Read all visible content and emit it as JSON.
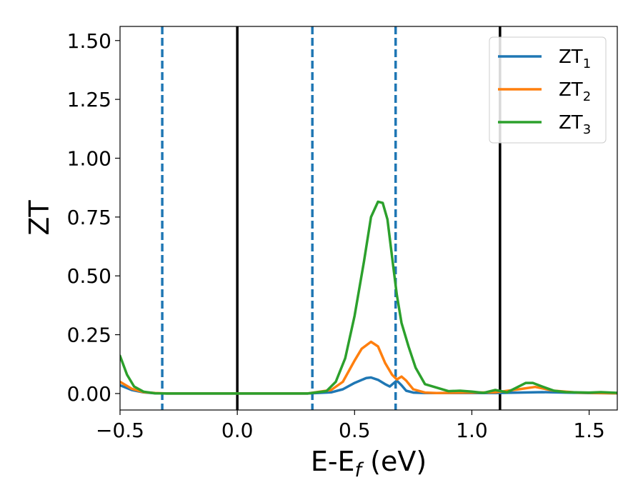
{
  "chart_data": {
    "type": "line",
    "xlabel": {
      "main": "E-E",
      "sub": "f",
      "suffix": " (eV)"
    },
    "ylabel": "ZT",
    "xlim": [
      -0.5,
      1.62
    ],
    "ylim": [
      -0.07,
      1.56
    ],
    "xticks": [
      -0.5,
      0.0,
      0.5,
      1.0,
      1.5
    ],
    "xtick_labels": [
      "−0.5",
      "0.0",
      "0.5",
      "1.0",
      "1.5"
    ],
    "yticks": [
      0.0,
      0.25,
      0.5,
      0.75,
      1.0,
      1.25,
      1.5
    ],
    "ytick_labels": [
      "0.00",
      "0.25",
      "0.50",
      "0.75",
      "1.00",
      "1.25",
      "1.50"
    ],
    "grid": false,
    "legend_position": "top-right",
    "vlines": [
      {
        "x": -0.32,
        "style": "dashed",
        "color": "#1f77b4"
      },
      {
        "x": 0.0,
        "style": "solid",
        "color": "#000000"
      },
      {
        "x": 0.32,
        "style": "dashed",
        "color": "#1f77b4"
      },
      {
        "x": 0.675,
        "style": "dashed",
        "color": "#1f77b4"
      },
      {
        "x": 1.12,
        "style": "solid",
        "color": "#000000"
      }
    ],
    "series": [
      {
        "name": "ZT",
        "sub": "1",
        "color": "#1f77b4",
        "x": [
          -0.5,
          -0.45,
          -0.4,
          -0.35,
          -0.3,
          0.3,
          0.4,
          0.45,
          0.5,
          0.55,
          0.57,
          0.6,
          0.63,
          0.65,
          0.68,
          0.7,
          0.72,
          0.75,
          0.8,
          0.9,
          1.0,
          1.1,
          1.2,
          1.3,
          1.4,
          1.5,
          1.62
        ],
        "y": [
          0.035,
          0.015,
          0.005,
          0.001,
          0.0,
          0.0,
          0.005,
          0.018,
          0.045,
          0.066,
          0.068,
          0.058,
          0.04,
          0.03,
          0.055,
          0.035,
          0.012,
          0.004,
          0.002,
          0.002,
          0.002,
          0.002,
          0.004,
          0.006,
          0.004,
          0.002,
          0.001
        ]
      },
      {
        "name": "ZT",
        "sub": "2",
        "color": "#ff7f0e",
        "x": [
          -0.5,
          -0.45,
          -0.4,
          -0.35,
          -0.3,
          0.3,
          0.4,
          0.45,
          0.5,
          0.53,
          0.57,
          0.6,
          0.63,
          0.66,
          0.68,
          0.7,
          0.72,
          0.75,
          0.8,
          0.85,
          0.9,
          1.0,
          1.1,
          1.2,
          1.27,
          1.35,
          1.45,
          1.55,
          1.62
        ],
        "y": [
          0.05,
          0.02,
          0.006,
          0.002,
          0.0,
          0.0,
          0.015,
          0.05,
          0.14,
          0.19,
          0.22,
          0.2,
          0.13,
          0.08,
          0.06,
          0.072,
          0.055,
          0.018,
          0.004,
          0.002,
          0.003,
          0.004,
          0.005,
          0.018,
          0.028,
          0.012,
          0.004,
          0.002,
          0.001
        ]
      },
      {
        "name": "ZT",
        "sub": "3",
        "color": "#2ca02c",
        "x": [
          -0.5,
          -0.47,
          -0.44,
          -0.4,
          -0.35,
          -0.3,
          0.3,
          0.38,
          0.42,
          0.46,
          0.5,
          0.54,
          0.57,
          0.6,
          0.62,
          0.64,
          0.66,
          0.68,
          0.7,
          0.73,
          0.76,
          0.8,
          0.85,
          0.9,
          0.95,
          1.0,
          1.05,
          1.1,
          1.15,
          1.2,
          1.23,
          1.26,
          1.3,
          1.35,
          1.4,
          1.5,
          1.55,
          1.62
        ],
        "y": [
          0.16,
          0.08,
          0.03,
          0.008,
          0.001,
          0.0,
          0.0,
          0.01,
          0.05,
          0.15,
          0.33,
          0.56,
          0.75,
          0.815,
          0.81,
          0.74,
          0.58,
          0.42,
          0.3,
          0.2,
          0.11,
          0.04,
          0.025,
          0.01,
          0.012,
          0.008,
          0.003,
          0.015,
          0.005,
          0.03,
          0.045,
          0.045,
          0.03,
          0.012,
          0.006,
          0.004,
          0.006,
          0.003
        ]
      }
    ]
  }
}
